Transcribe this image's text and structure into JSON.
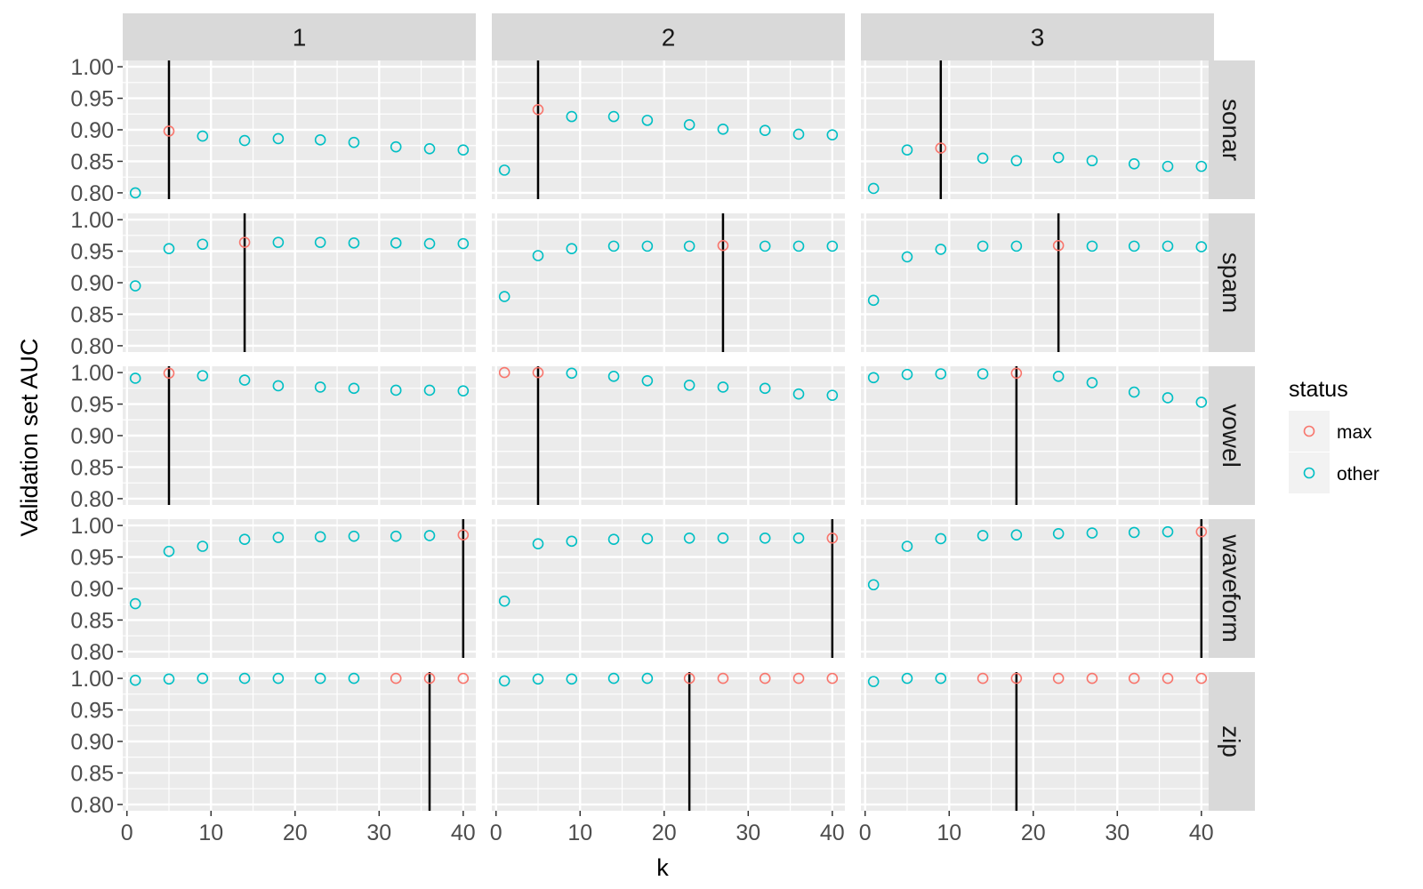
{
  "chart_data": {
    "type": "scatter",
    "xlabel": "k",
    "ylabel": "Validation set AUC",
    "xlim": [
      -0.5,
      41.5
    ],
    "ylim": [
      0.79,
      1.01
    ],
    "x_ticks": [
      0,
      10,
      20,
      30,
      40
    ],
    "x_tick_labels": [
      "0",
      "10",
      "20",
      "30",
      "40"
    ],
    "y_ticks": [
      0.8,
      0.85,
      0.9,
      0.95,
      1.0
    ],
    "y_tick_labels": [
      "0.80",
      "0.85",
      "0.90",
      "0.95",
      "1.00"
    ],
    "grid": true,
    "column_facets": [
      "1",
      "2",
      "3"
    ],
    "row_facets": [
      "sonar",
      "spam",
      "vowel",
      "waveform",
      "zip"
    ],
    "k_values": [
      1,
      5,
      9,
      14,
      18,
      23,
      27,
      32,
      36,
      40
    ],
    "legend": {
      "title": "status",
      "position": "right",
      "entries": [
        {
          "label": "max",
          "color": "#F8766D"
        },
        {
          "label": "other",
          "color": "#00BFC4"
        }
      ]
    },
    "colors": {
      "max": "#F8766D",
      "other": "#00BFC4",
      "vline": "#000000",
      "panel_bg": "#EBEBEB",
      "strip_bg": "#D9D9D9"
    },
    "panels": [
      {
        "row": "sonar",
        "col": "1",
        "vline_k": 5,
        "auc": [
          0.8,
          0.898,
          0.89,
          0.883,
          0.886,
          0.884,
          0.88,
          0.873,
          0.87,
          0.868
        ],
        "status": [
          "other",
          "max",
          "other",
          "other",
          "other",
          "other",
          "other",
          "other",
          "other",
          "other"
        ]
      },
      {
        "row": "sonar",
        "col": "2",
        "vline_k": 5,
        "auc": [
          0.836,
          0.932,
          0.921,
          0.921,
          0.915,
          0.908,
          0.901,
          0.899,
          0.893,
          0.892
        ],
        "status": [
          "other",
          "max",
          "other",
          "other",
          "other",
          "other",
          "other",
          "other",
          "other",
          "other"
        ]
      },
      {
        "row": "sonar",
        "col": "3",
        "vline_k": 9,
        "auc": [
          0.807,
          0.868,
          0.871,
          0.855,
          0.851,
          0.856,
          0.851,
          0.846,
          0.842,
          0.842
        ],
        "status": [
          "other",
          "other",
          "max",
          "other",
          "other",
          "other",
          "other",
          "other",
          "other",
          "other"
        ]
      },
      {
        "row": "spam",
        "col": "1",
        "vline_k": 14,
        "auc": [
          0.895,
          0.954,
          0.961,
          0.964,
          0.964,
          0.964,
          0.963,
          0.963,
          0.962,
          0.962
        ],
        "status": [
          "other",
          "other",
          "other",
          "max",
          "other",
          "other",
          "other",
          "other",
          "other",
          "other"
        ]
      },
      {
        "row": "spam",
        "col": "2",
        "vline_k": 27,
        "auc": [
          0.878,
          0.943,
          0.954,
          0.958,
          0.958,
          0.958,
          0.959,
          0.958,
          0.958,
          0.958
        ],
        "status": [
          "other",
          "other",
          "other",
          "other",
          "other",
          "other",
          "max",
          "other",
          "other",
          "other"
        ]
      },
      {
        "row": "spam",
        "col": "3",
        "vline_k": 23,
        "auc": [
          0.872,
          0.941,
          0.953,
          0.958,
          0.958,
          0.959,
          0.958,
          0.958,
          0.958,
          0.957
        ],
        "status": [
          "other",
          "other",
          "other",
          "other",
          "other",
          "max",
          "other",
          "other",
          "other",
          "other"
        ]
      },
      {
        "row": "vowel",
        "col": "1",
        "vline_k": 5,
        "auc": [
          0.991,
          0.999,
          0.995,
          0.988,
          0.979,
          0.977,
          0.975,
          0.972,
          0.972,
          0.971
        ],
        "status": [
          "other",
          "max",
          "other",
          "other",
          "other",
          "other",
          "other",
          "other",
          "other",
          "other"
        ]
      },
      {
        "row": "vowel",
        "col": "2",
        "vline_k": 5,
        "auc": [
          1.0,
          1.0,
          0.999,
          0.994,
          0.987,
          0.98,
          0.977,
          0.975,
          0.966,
          0.964
        ],
        "status": [
          "max",
          "max",
          "other",
          "other",
          "other",
          "other",
          "other",
          "other",
          "other",
          "other"
        ]
      },
      {
        "row": "vowel",
        "col": "3",
        "vline_k": 18,
        "auc": [
          0.992,
          0.997,
          0.998,
          0.998,
          0.999,
          0.994,
          0.984,
          0.969,
          0.96,
          0.953
        ],
        "status": [
          "other",
          "other",
          "other",
          "other",
          "max",
          "other",
          "other",
          "other",
          "other",
          "other"
        ]
      },
      {
        "row": "waveform",
        "col": "1",
        "vline_k": 40,
        "auc": [
          0.876,
          0.959,
          0.967,
          0.978,
          0.981,
          0.982,
          0.983,
          0.983,
          0.984,
          0.985
        ],
        "status": [
          "other",
          "other",
          "other",
          "other",
          "other",
          "other",
          "other",
          "other",
          "other",
          "max"
        ]
      },
      {
        "row": "waveform",
        "col": "2",
        "vline_k": 40,
        "auc": [
          0.88,
          0.971,
          0.975,
          0.978,
          0.979,
          0.98,
          0.98,
          0.98,
          0.98,
          0.98
        ],
        "status": [
          "other",
          "other",
          "other",
          "other",
          "other",
          "other",
          "other",
          "other",
          "other",
          "max"
        ]
      },
      {
        "row": "waveform",
        "col": "3",
        "vline_k": 40,
        "auc": [
          0.906,
          0.967,
          0.979,
          0.984,
          0.985,
          0.987,
          0.988,
          0.989,
          0.99,
          0.99
        ],
        "status": [
          "other",
          "other",
          "other",
          "other",
          "other",
          "other",
          "other",
          "other",
          "other",
          "max"
        ]
      },
      {
        "row": "zip",
        "col": "1",
        "vline_k": 36,
        "auc": [
          0.997,
          0.999,
          1.0,
          1.0,
          1.0,
          1.0,
          1.0,
          1.0,
          1.0,
          1.0
        ],
        "status": [
          "other",
          "other",
          "other",
          "other",
          "other",
          "other",
          "other",
          "max",
          "max",
          "max"
        ]
      },
      {
        "row": "zip",
        "col": "2",
        "vline_k": 23,
        "auc": [
          0.996,
          0.999,
          0.999,
          1.0,
          1.0,
          1.0,
          1.0,
          1.0,
          1.0,
          1.0
        ],
        "status": [
          "other",
          "other",
          "other",
          "other",
          "other",
          "max",
          "max",
          "max",
          "max",
          "max"
        ]
      },
      {
        "row": "zip",
        "col": "3",
        "vline_k": 18,
        "auc": [
          0.995,
          1.0,
          1.0,
          1.0,
          1.0,
          1.0,
          1.0,
          1.0,
          1.0,
          1.0
        ],
        "status": [
          "other",
          "other",
          "other",
          "max",
          "max",
          "max",
          "max",
          "max",
          "max",
          "max"
        ]
      }
    ]
  }
}
